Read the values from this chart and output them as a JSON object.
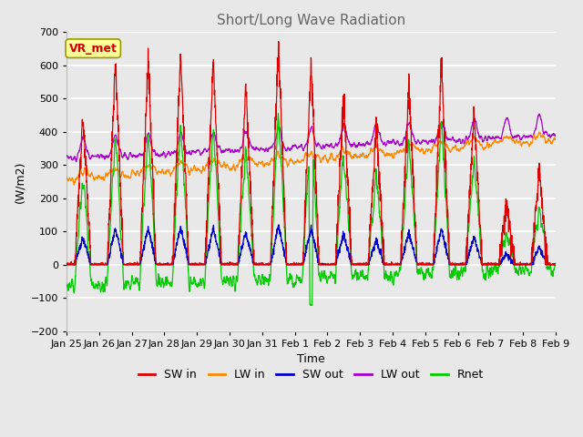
{
  "title": "Short/Long Wave Radiation",
  "xlabel": "Time",
  "ylabel": "(W/m2)",
  "ylim": [
    -200,
    700
  ],
  "xlim": [
    0,
    15
  ],
  "background_color": "#e8e8e8",
  "plot_bg_color": "#e8e8e8",
  "grid_color": "white",
  "annotation_text": "VR_met",
  "annotation_bg": "#ffff99",
  "annotation_border": "#999900",
  "tick_labels": [
    "Jan 25",
    "Jan 26",
    "Jan 27",
    "Jan 28",
    "Jan 29",
    "Jan 30",
    "Jan 31",
    "Feb 1",
    "Feb 2",
    "Feb 3",
    "Feb 4",
    "Feb 5",
    "Feb 6",
    "Feb 7",
    "Feb 8",
    "Feb 9"
  ],
  "colors": {
    "SW_in": "#dd0000",
    "LW_in": "#ff8800",
    "SW_out": "#0000cc",
    "LW_out": "#aa00cc",
    "Rnet": "#00cc00"
  },
  "legend_labels": [
    "SW in",
    "LW in",
    "SW out",
    "LW out",
    "Rnet"
  ]
}
